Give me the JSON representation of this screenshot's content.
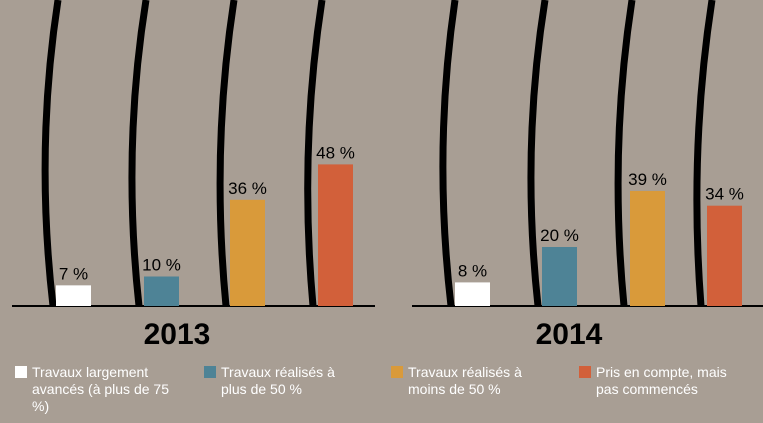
{
  "chart_data": {
    "type": "bar",
    "categories": [
      "2013",
      "2014"
    ],
    "series": [
      {
        "name": "Travaux largement avancés (à plus de 75 %)",
        "color": "#ffffff",
        "values": [
          7,
          8
        ],
        "value_labels": [
          "7 %",
          "8 %"
        ]
      },
      {
        "name": "Travaux réalisés à plus de 50 %",
        "color": "#4e8396",
        "values": [
          10,
          20
        ],
        "value_labels": [
          "10 %",
          "20 %"
        ]
      },
      {
        "name": "Travaux réalisés à moins de 50 %",
        "color": "#d99a3a",
        "values": [
          36,
          39
        ],
        "value_labels": [
          "36 %",
          "39 %"
        ]
      },
      {
        "name": "Pris en compte, mais pas commencés",
        "color": "#d2603a",
        "values": [
          48,
          34
        ],
        "value_labels": [
          "48 %",
          "34 %"
        ]
      }
    ]
  }
}
